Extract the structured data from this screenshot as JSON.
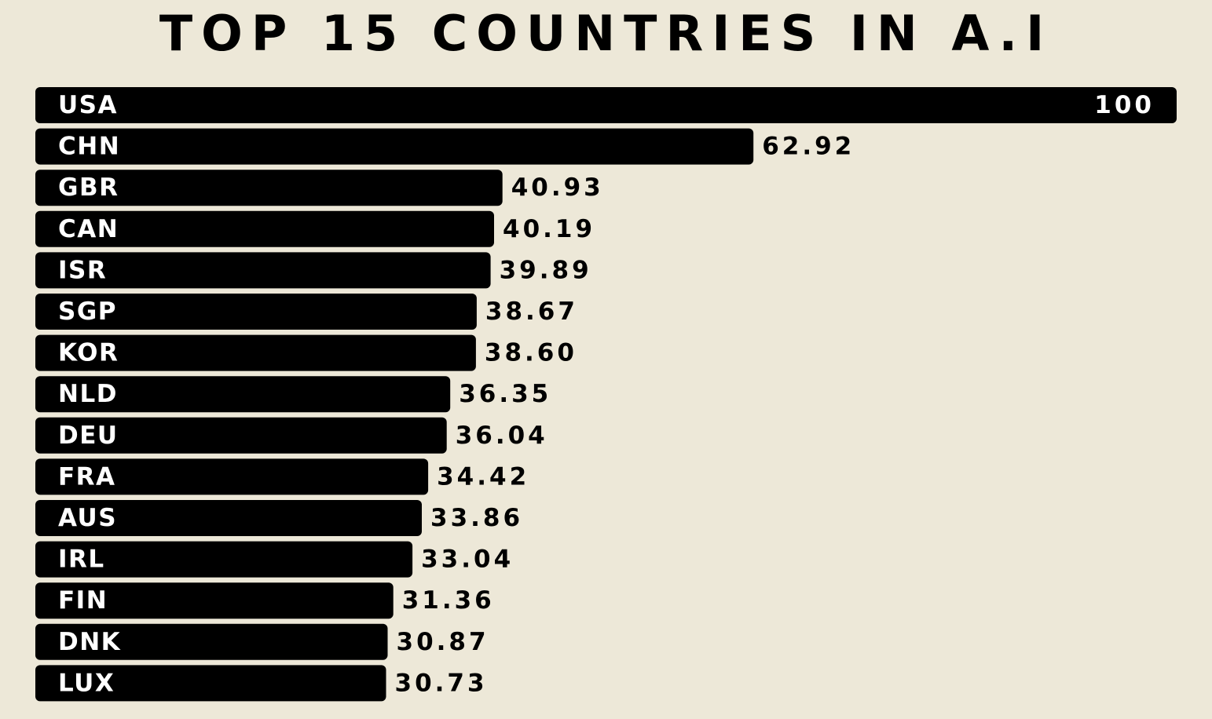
{
  "chart_data": {
    "type": "bar",
    "orientation": "horizontal",
    "title": "TOP 15 COUNTRIES IN A.I",
    "xlabel": "",
    "ylabel": "",
    "xlim": [
      0,
      100
    ],
    "grid": false,
    "legend": "none",
    "categories": [
      "USA",
      "CHN",
      "GBR",
      "CAN",
      "ISR",
      "SGP",
      "KOR",
      "NLD",
      "DEU",
      "FRA",
      "AUS",
      "IRL",
      "FIN",
      "DNK",
      "LUX"
    ],
    "values": [
      100,
      62.92,
      40.93,
      40.19,
      39.89,
      38.67,
      38.6,
      36.35,
      36.04,
      34.42,
      33.86,
      33.04,
      31.36,
      30.87,
      30.73
    ],
    "value_labels": [
      "100",
      "62.92",
      "40.93",
      "40.19",
      "39.89",
      "38.67",
      "38.60",
      "36.35",
      "36.04",
      "34.42",
      "33.86",
      "33.04",
      "31.36",
      "30.87",
      "30.73"
    ],
    "colors": {
      "background": "#ede8d8",
      "bar": "#000000",
      "category_text": "#ffffff",
      "value_text": "#000000"
    }
  }
}
